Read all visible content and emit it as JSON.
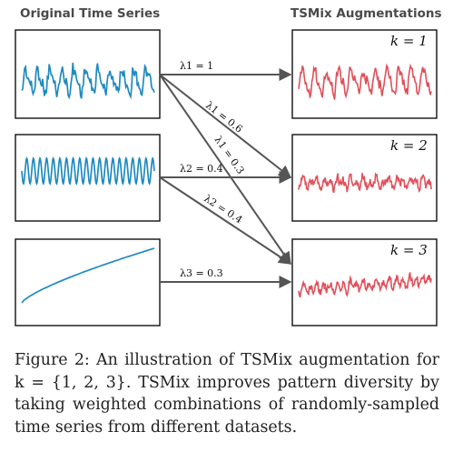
{
  "headers": {
    "left": "Original Time Series",
    "right": "TSMix Augmentations"
  },
  "k_labels": [
    "k = 1",
    "k = 2",
    "k = 3"
  ],
  "edge_labels": [
    "λ1 = 1",
    "λ1 = 0.6",
    "λ1 = 0.3",
    "λ2 = 0.4",
    "λ2 = 0.4",
    "λ3 = 0.3"
  ],
  "caption": "Figure 2: An illustration of TSMix augmentation for k = {1, 2, 3}. TSMix improves pattern diversity by taking weighted combinations of randomly-sampled time series from different datasets.",
  "colors": {
    "original_series": "#1f8ac0",
    "augmented_series": "#e0505a",
    "arrow": "#555555",
    "header_text": "#4a4a4a"
  }
}
